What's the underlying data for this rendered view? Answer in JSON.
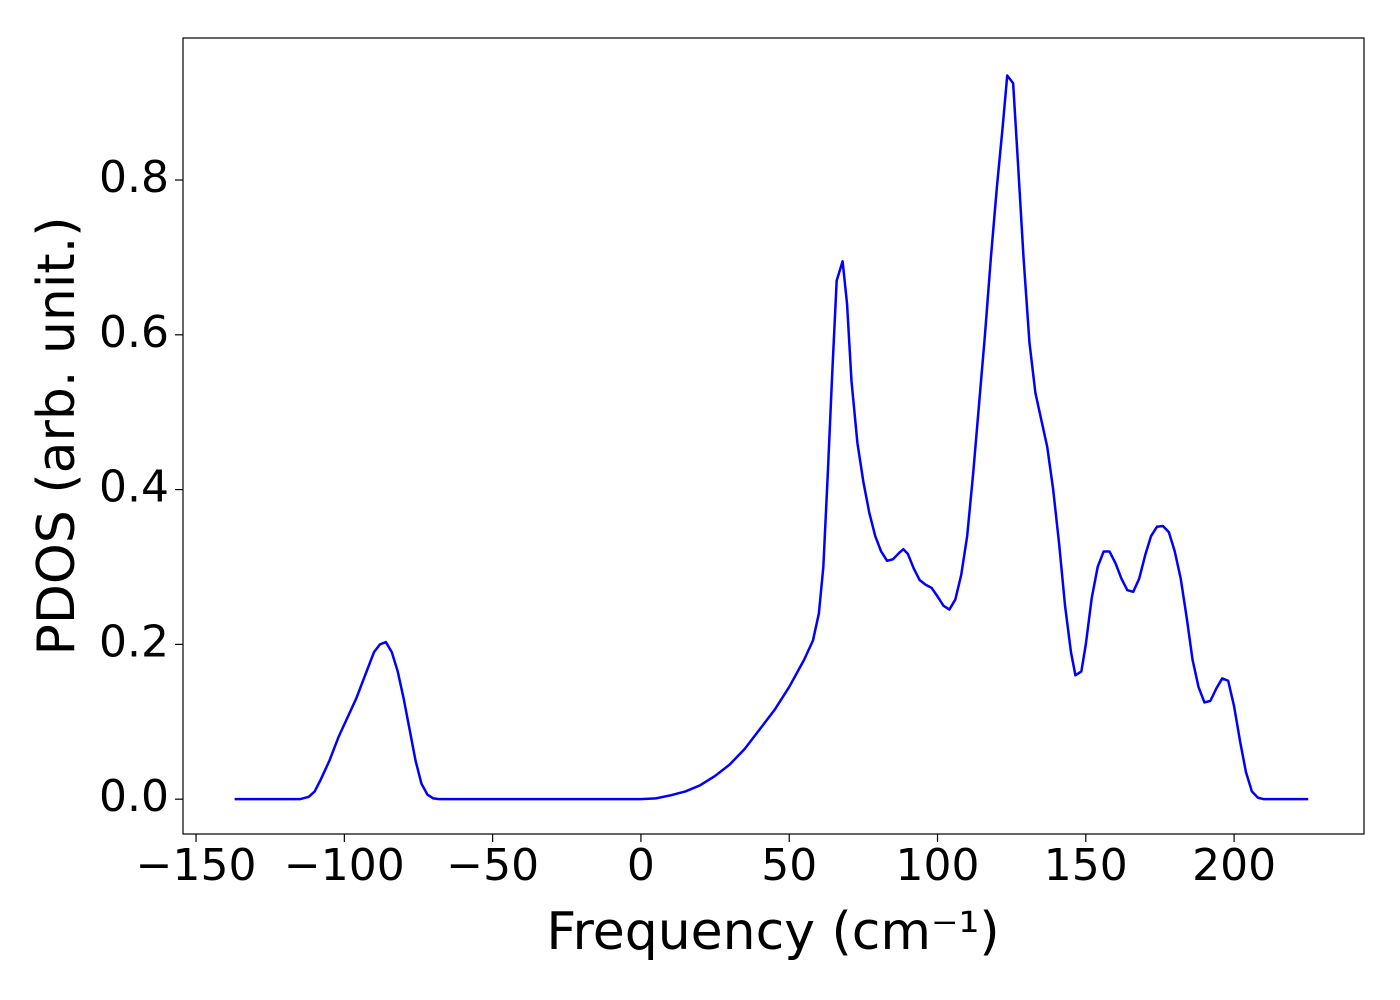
{
  "chart_data": {
    "type": "line",
    "x_label": "Frequency (cm⁻¹)",
    "y_label": "PDOS (arb. unit.)",
    "color": "#0000ff",
    "xlim": [
      -154.4,
      243.8
    ],
    "ylim": [
      -0.045,
      0.9835
    ],
    "xticks": [
      {
        "value": -150,
        "label": "−150"
      },
      {
        "value": -100,
        "label": "−100"
      },
      {
        "value": -50,
        "label": "−50"
      },
      0,
      50,
      100,
      150,
      200
    ],
    "yticks": [
      {
        "value": 0,
        "label": "0.0"
      },
      0.2,
      0.4,
      0.6,
      0.8
    ],
    "x": [
      -137,
      -115,
      -112,
      -110,
      -108,
      -105,
      -102,
      -99,
      -96,
      -93,
      -90,
      -88,
      -86,
      -84,
      -82,
      -80,
      -78,
      -76,
      -74,
      -72,
      -70,
      -68,
      0,
      5,
      10,
      15,
      20,
      25,
      30,
      35,
      40,
      45,
      50,
      55,
      58,
      60,
      61.5,
      63,
      64.5,
      66,
      68,
      69.5,
      71,
      73,
      75,
      77,
      79,
      81,
      83,
      85,
      87,
      88.5,
      90,
      92,
      94,
      96,
      98,
      100,
      102,
      104,
      106,
      108,
      110,
      112,
      114,
      116,
      118,
      120,
      122,
      123.5,
      125.5,
      127,
      129,
      131,
      133,
      135,
      137,
      139,
      141,
      143,
      145,
      146.5,
      148.5,
      150,
      152,
      154,
      156,
      158,
      160,
      162,
      164,
      166,
      168,
      170,
      172,
      174,
      176,
      178,
      180,
      182,
      184,
      186,
      188,
      190,
      192,
      194,
      196,
      198,
      200,
      202,
      204,
      206,
      208,
      210,
      225
    ],
    "values": [
      0,
      0,
      0.003,
      0.01,
      0.025,
      0.05,
      0.08,
      0.105,
      0.13,
      0.16,
      0.19,
      0.2,
      0.203,
      0.19,
      0.165,
      0.13,
      0.09,
      0.05,
      0.02,
      0.006,
      0.001,
      0,
      0,
      0.001,
      0.005,
      0.01,
      0.018,
      0.03,
      0.045,
      0.065,
      0.09,
      0.115,
      0.145,
      0.18,
      0.205,
      0.24,
      0.3,
      0.42,
      0.55,
      0.67,
      0.695,
      0.64,
      0.54,
      0.46,
      0.41,
      0.37,
      0.34,
      0.32,
      0.308,
      0.31,
      0.318,
      0.323,
      0.317,
      0.298,
      0.283,
      0.277,
      0.273,
      0.262,
      0.25,
      0.245,
      0.258,
      0.29,
      0.34,
      0.42,
      0.51,
      0.6,
      0.7,
      0.79,
      0.87,
      0.935,
      0.925,
      0.83,
      0.7,
      0.59,
      0.525,
      0.49,
      0.455,
      0.4,
      0.33,
      0.25,
      0.19,
      0.16,
      0.165,
      0.2,
      0.26,
      0.3,
      0.32,
      0.32,
      0.305,
      0.285,
      0.27,
      0.268,
      0.285,
      0.315,
      0.34,
      0.352,
      0.353,
      0.345,
      0.32,
      0.285,
      0.235,
      0.18,
      0.145,
      0.125,
      0.127,
      0.143,
      0.156,
      0.153,
      0.12,
      0.075,
      0.035,
      0.01,
      0.002,
      0,
      0
    ]
  }
}
